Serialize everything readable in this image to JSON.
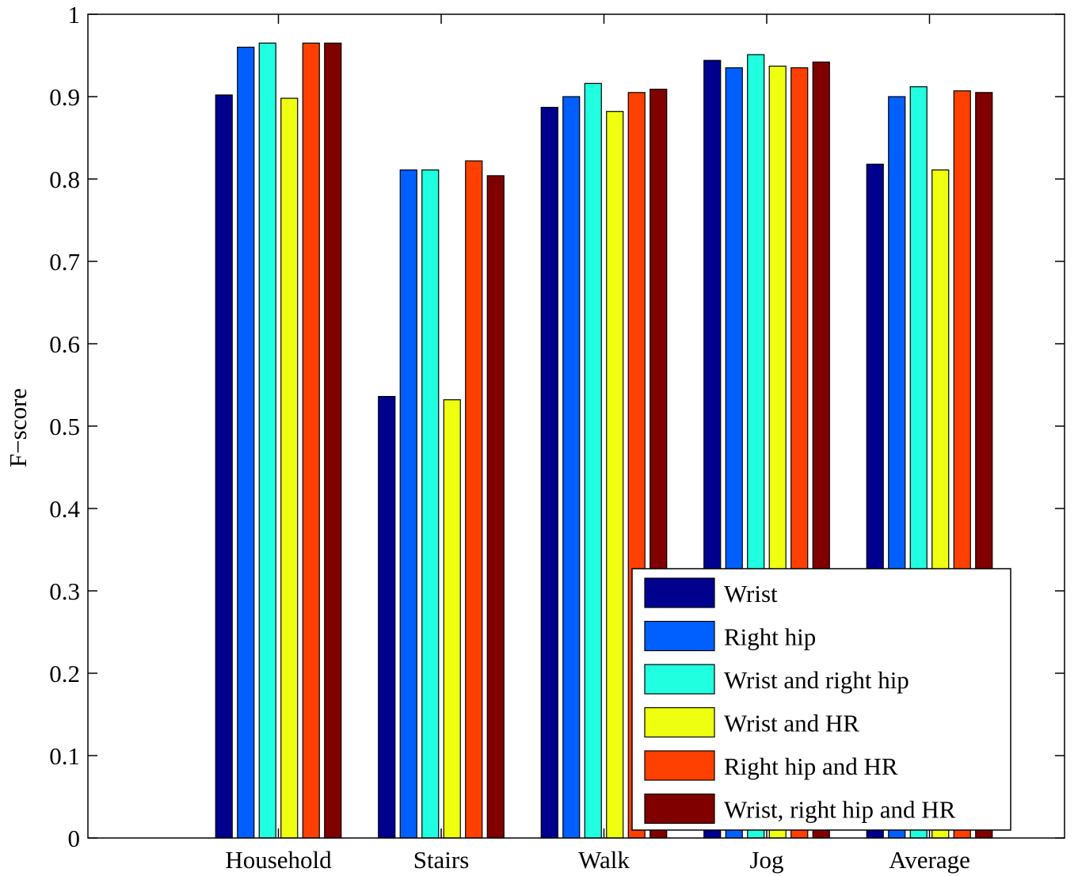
{
  "chart_data": {
    "type": "bar",
    "title": "",
    "xlabel": "",
    "ylabel": "F−score",
    "ylim": [
      0,
      1
    ],
    "yticks": [
      "0",
      "0.1",
      "0.2",
      "0.3",
      "0.4",
      "0.5",
      "0.6",
      "0.7",
      "0.8",
      "0.9",
      "1"
    ],
    "categories": [
      "Household",
      "Stairs",
      "Walk",
      "Jog",
      "Average"
    ],
    "grid": false,
    "legend_position": "bottom-right",
    "series": [
      {
        "name": "Wrist",
        "color": "#00008f",
        "values": [
          0.902,
          0.536,
          0.887,
          0.944,
          0.818
        ]
      },
      {
        "name": "Right hip",
        "color": "#0060ff",
        "values": [
          0.96,
          0.811,
          0.9,
          0.935,
          0.9
        ]
      },
      {
        "name": "Wrist and right hip",
        "color": "#20ffdf",
        "values": [
          0.965,
          0.811,
          0.916,
          0.951,
          0.912
        ]
      },
      {
        "name": "Wrist and HR",
        "color": "#efff10",
        "values": [
          0.898,
          0.532,
          0.882,
          0.937,
          0.811
        ]
      },
      {
        "name": "Right hip and HR",
        "color": "#ff4000",
        "values": [
          0.965,
          0.822,
          0.905,
          0.935,
          0.907
        ]
      },
      {
        "name": "Wrist, right hip and HR",
        "color": "#800000",
        "values": [
          0.965,
          0.804,
          0.909,
          0.942,
          0.905
        ]
      }
    ]
  }
}
